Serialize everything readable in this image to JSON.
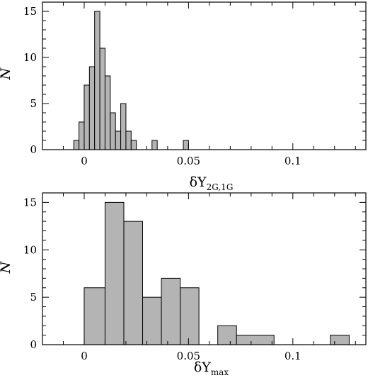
{
  "chart_data": [
    {
      "type": "bar",
      "histogram": true,
      "xlim": [
        -0.02,
        0.135
      ],
      "ylim": [
        0,
        16
      ],
      "xticks": [
        0,
        0.05,
        0.1
      ],
      "xtick_labels": [
        "0",
        "0.05",
        "0.1"
      ],
      "yticks": [
        0,
        5,
        10,
        15
      ],
      "ytick_labels": [
        "0",
        "5",
        "10",
        "15"
      ],
      "ylabel": "N",
      "xlabel_main": "δY",
      "xlabel_sub": "2G,1G",
      "grid": false,
      "bar_color": "#b4b4b4",
      "bins": [
        {
          "x0": -0.005,
          "x1": -0.0025,
          "n": 1
        },
        {
          "x0": -0.0025,
          "x1": 0.0,
          "n": 3
        },
        {
          "x0": 0.0,
          "x1": 0.0025,
          "n": 7
        },
        {
          "x0": 0.0025,
          "x1": 0.005,
          "n": 9
        },
        {
          "x0": 0.005,
          "x1": 0.0075,
          "n": 15
        },
        {
          "x0": 0.0075,
          "x1": 0.01,
          "n": 11
        },
        {
          "x0": 0.01,
          "x1": 0.0125,
          "n": 8
        },
        {
          "x0": 0.0125,
          "x1": 0.015,
          "n": 4
        },
        {
          "x0": 0.015,
          "x1": 0.0175,
          "n": 2
        },
        {
          "x0": 0.0175,
          "x1": 0.02,
          "n": 5
        },
        {
          "x0": 0.02,
          "x1": 0.0225,
          "n": 2
        },
        {
          "x0": 0.0225,
          "x1": 0.025,
          "n": 1
        },
        {
          "x0": 0.0325,
          "x1": 0.035,
          "n": 1
        },
        {
          "x0": 0.0475,
          "x1": 0.05,
          "n": 1
        }
      ]
    },
    {
      "type": "bar",
      "histogram": true,
      "xlim": [
        -0.02,
        0.135
      ],
      "ylim": [
        0,
        16
      ],
      "xticks": [
        0,
        0.05,
        0.1
      ],
      "xtick_labels": [
        "0",
        "0.05",
        "0.1"
      ],
      "yticks": [
        0,
        5,
        10,
        15
      ],
      "ytick_labels": [
        "0",
        "5",
        "10",
        "15"
      ],
      "ylabel": "N",
      "xlabel_main": "δY",
      "xlabel_sub": "max",
      "grid": false,
      "bar_color": "#b4b4b4",
      "bins": [
        {
          "x0": 0.0,
          "x1": 0.01,
          "n": 6
        },
        {
          "x0": 0.01,
          "x1": 0.019,
          "n": 15
        },
        {
          "x0": 0.019,
          "x1": 0.028,
          "n": 13
        },
        {
          "x0": 0.028,
          "x1": 0.037,
          "n": 5
        },
        {
          "x0": 0.037,
          "x1": 0.046,
          "n": 7
        },
        {
          "x0": 0.046,
          "x1": 0.055,
          "n": 6
        },
        {
          "x0": 0.064,
          "x1": 0.073,
          "n": 2
        },
        {
          "x0": 0.073,
          "x1": 0.091,
          "n": 1
        },
        {
          "x0": 0.118,
          "x1": 0.127,
          "n": 1
        }
      ]
    }
  ]
}
